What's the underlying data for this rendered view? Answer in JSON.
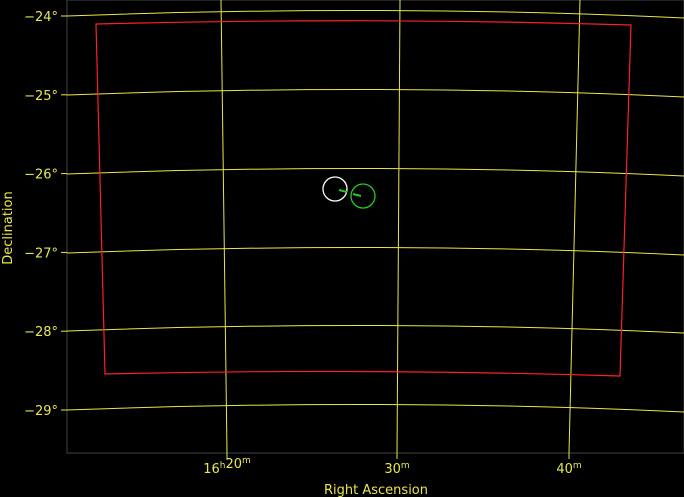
{
  "chart_data": {
    "type": "sky-plot",
    "xlabel": "Right Ascension",
    "ylabel": "Declination",
    "ra_ticks": [
      {
        "value_min": 20,
        "label_main": "16",
        "label_sup1": "h",
        "label_mid": "20",
        "label_sup2": "m"
      },
      {
        "value_min": 30,
        "label_main": "30",
        "label_sup1": "",
        "label_mid": "",
        "label_sup2": "m"
      },
      {
        "value_min": 40,
        "label_main": "40",
        "label_sup1": "",
        "label_mid": "",
        "label_sup2": "m"
      }
    ],
    "dec_ticks": [
      {
        "value": -24,
        "label": "−24°"
      },
      {
        "value": -25,
        "label": "−25°"
      },
      {
        "value": -26,
        "label": "−26°"
      },
      {
        "value": -27,
        "label": "−27°"
      },
      {
        "value": -28,
        "label": "−28°"
      },
      {
        "value": -29,
        "label": "−29°"
      }
    ],
    "colors": {
      "grid": "#e8e84a",
      "footprint": "#ff2020",
      "target_white": "#ffffff",
      "target_green": "#22cc22",
      "background": "#000000"
    }
  }
}
